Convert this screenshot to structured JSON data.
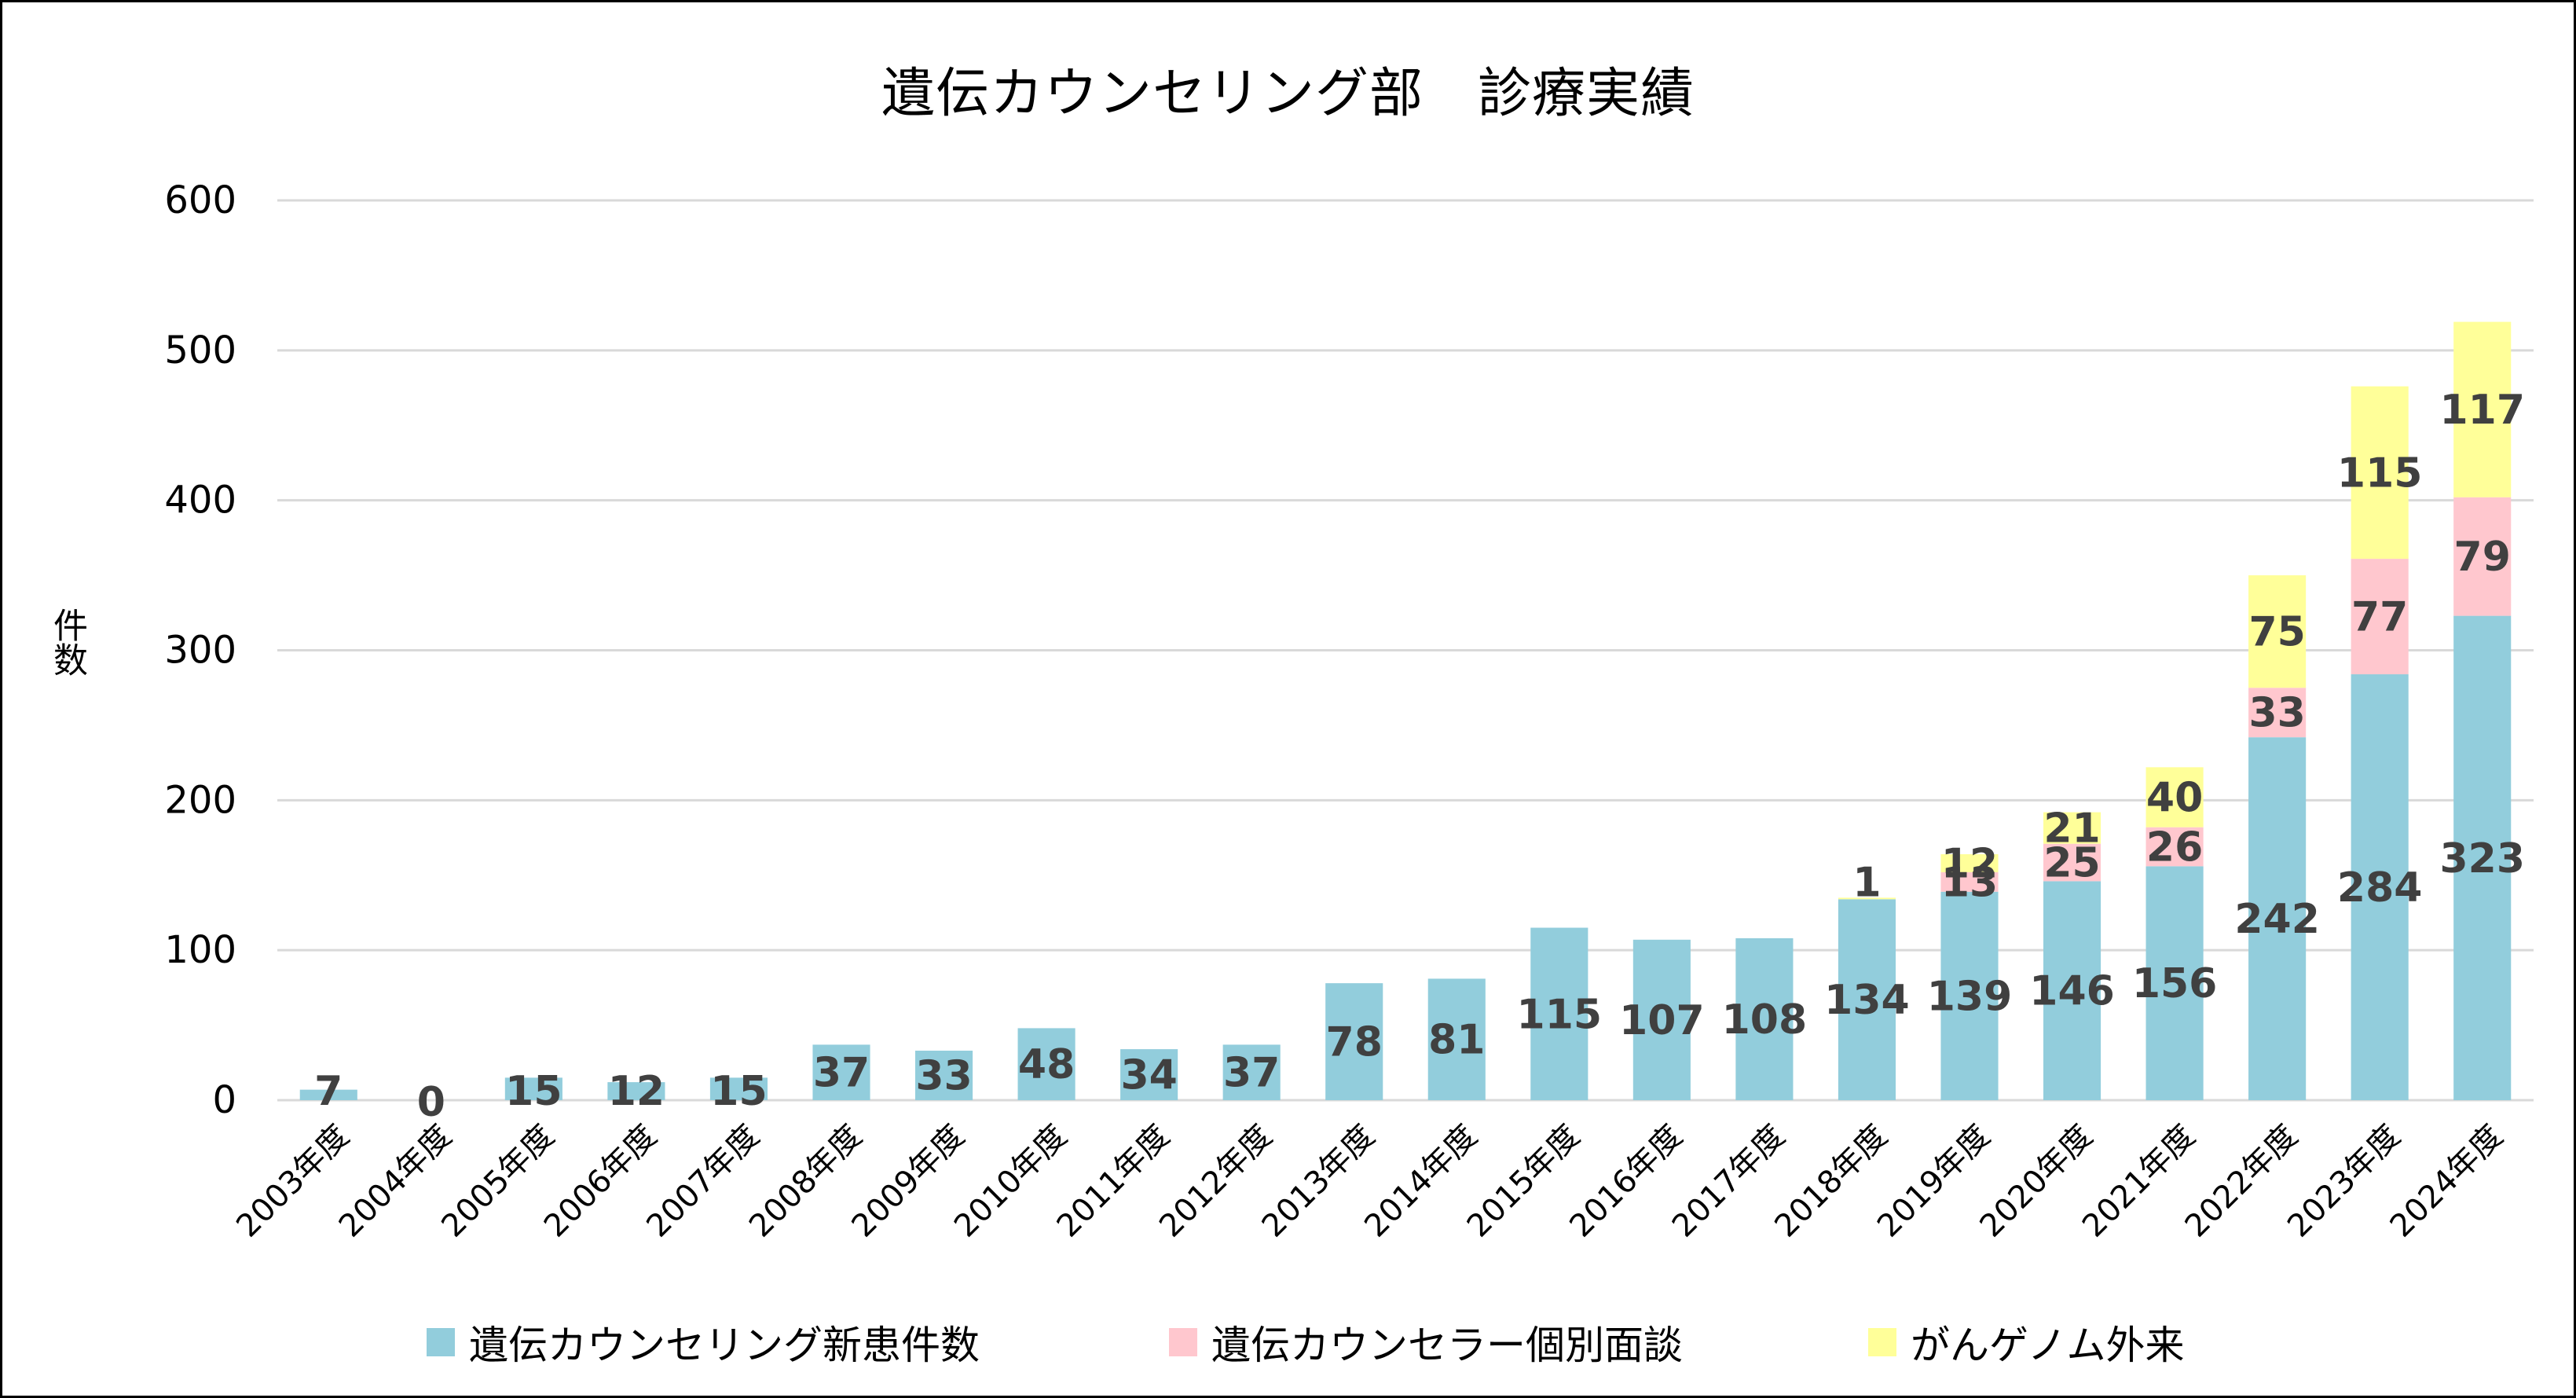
{
  "chart_data": {
    "type": "bar",
    "stacked": true,
    "title": "遺伝カウンセリング部　診療実績",
    "ylabel": "件数",
    "xlabel": "",
    "ylim": [
      0,
      600
    ],
    "yticks": [
      0,
      100,
      200,
      300,
      400,
      500,
      600
    ],
    "grid": true,
    "legend_position": "bottom",
    "categories": [
      "2003年度",
      "2004年度",
      "2005年度",
      "2006年度",
      "2007年度",
      "2008年度",
      "2009年度",
      "2010年度",
      "2011年度",
      "2012年度",
      "2013年度",
      "2014年度",
      "2015年度",
      "2016年度",
      "2017年度",
      "2018年度",
      "2019年度",
      "2020年度",
      "2021年度",
      "2022年度",
      "2023年度",
      "2024年度"
    ],
    "series": [
      {
        "name": "遺伝カウンセリング新患件数",
        "color": "#92cddc",
        "values": [
          7,
          0,
          15,
          12,
          15,
          37,
          33,
          48,
          34,
          37,
          78,
          81,
          115,
          107,
          108,
          134,
          139,
          146,
          156,
          242,
          284,
          323
        ],
        "labels": [
          "7",
          "0",
          "15",
          "12",
          "15",
          "37",
          "33",
          "48",
          "34",
          "37",
          "78",
          "81",
          "115",
          "107",
          "108",
          "134",
          "139",
          "146",
          "156",
          "242",
          "284",
          "323"
        ]
      },
      {
        "name": "遺伝カウンセラー個別面談",
        "color": "#ffc7ce",
        "values": [
          0,
          0,
          0,
          0,
          0,
          0,
          0,
          0,
          0,
          0,
          0,
          0,
          0,
          0,
          0,
          0,
          13,
          25,
          26,
          33,
          77,
          79
        ],
        "labels": [
          "",
          "",
          "",
          "",
          "",
          "",
          "",
          "",
          "",
          "",
          "",
          "",
          "",
          "",
          "",
          "",
          "13",
          "25",
          "26",
          "33",
          "77",
          "79"
        ]
      },
      {
        "name": "がんゲノム外来",
        "color": "#ffff99",
        "values": [
          0,
          0,
          0,
          0,
          0,
          0,
          0,
          0,
          0,
          0,
          0,
          0,
          0,
          0,
          0,
          1,
          12,
          21,
          40,
          75,
          115,
          117
        ],
        "labels": [
          "",
          "",
          "",
          "",
          "",
          "",
          "",
          "",
          "",
          "",
          "",
          "",
          "",
          "",
          "",
          "1",
          "12",
          "21",
          "40",
          "75",
          "115",
          "117"
        ]
      }
    ]
  },
  "colors": {
    "gridline": "#d9d9d9",
    "label_text": "#404040",
    "axis_text": "#000000"
  }
}
